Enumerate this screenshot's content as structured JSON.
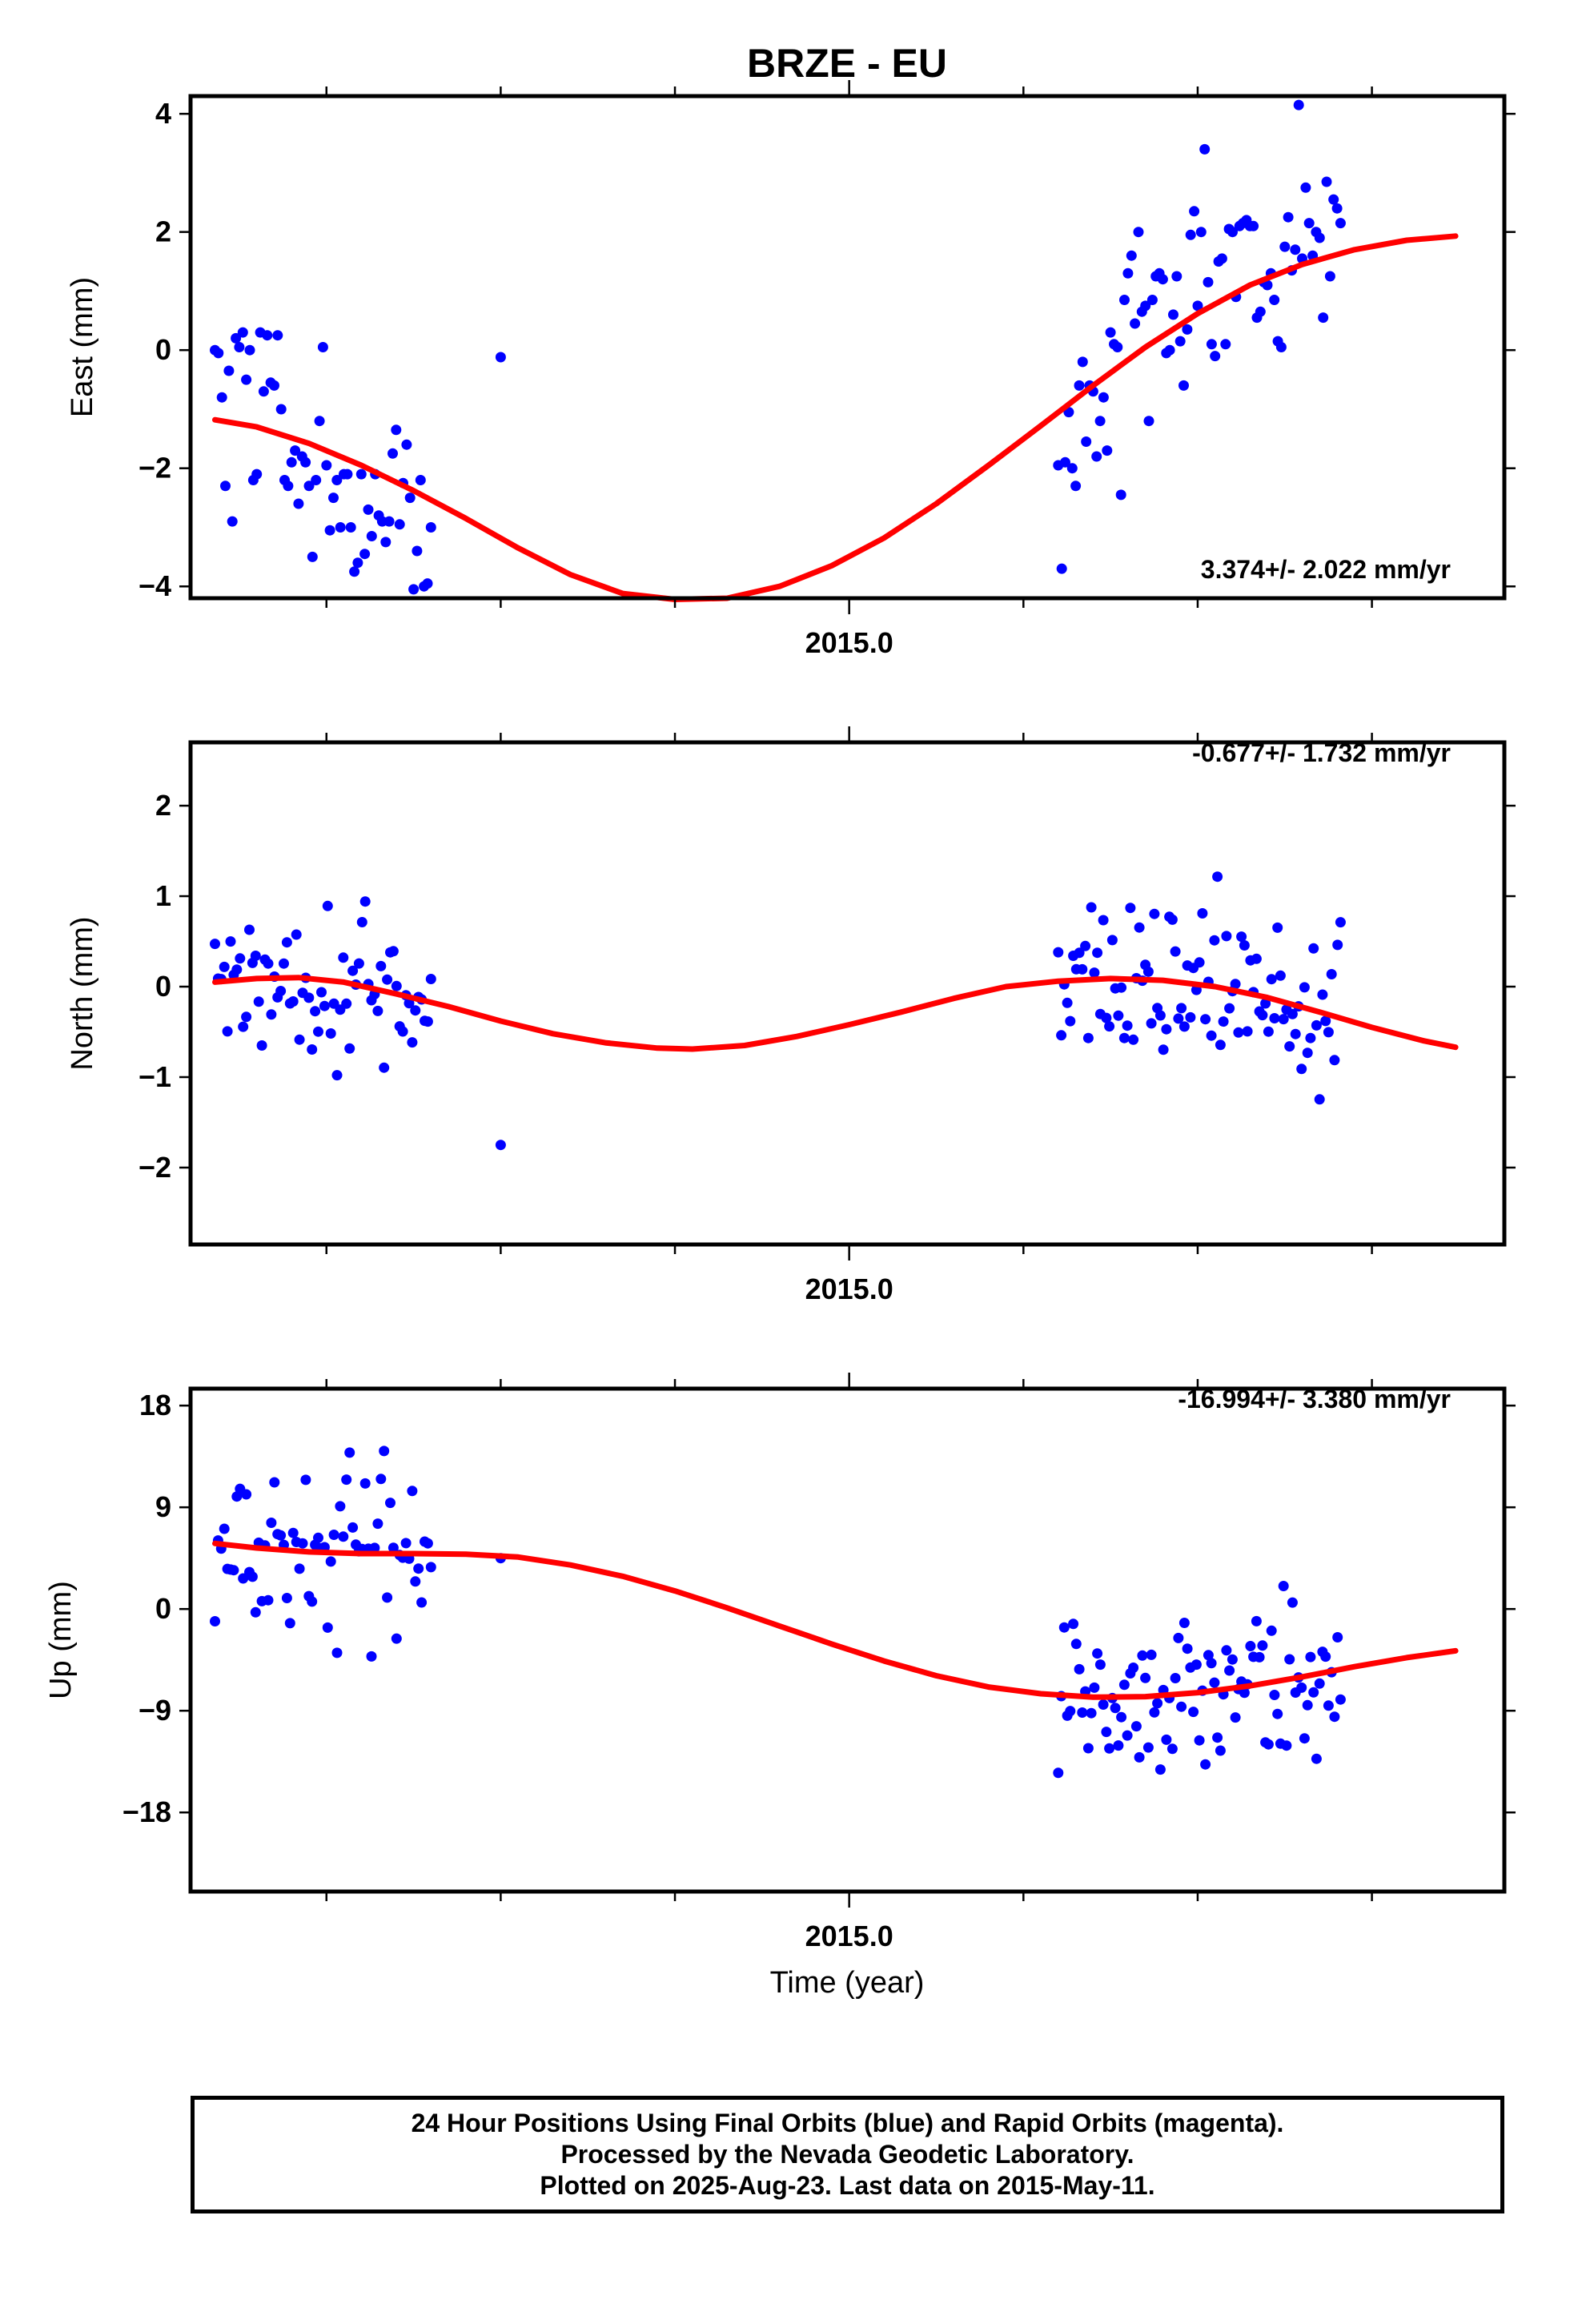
{
  "title": "BRZE - EU",
  "xlabel": "Time (year)",
  "footer": {
    "line1": "24 Hour Positions Using Final Orbits (blue) and Rapid Orbits (magenta).",
    "line2": "Processed by the Nevada Geodetic Laboratory.",
    "line3": "Plotted on 2025-Aug-23. Last data on 2015-May-11."
  },
  "colors": {
    "final_orbits": "#0000ff",
    "fit_line": "#ff0000",
    "frame": "#000000"
  },
  "chart_data": [
    {
      "type": "scatter",
      "panel": "east",
      "ylabel": "East (mm)",
      "rate_label": "3.374+/- 2.022 mm/yr",
      "xlim": [
        2013.11,
        2016.88
      ],
      "ylim": [
        -4.2,
        4.3
      ],
      "yticks": [
        {
          "v": 4,
          "label": "4"
        },
        {
          "v": 2,
          "label": "2"
        },
        {
          "v": 0,
          "label": "0"
        },
        {
          "v": -2,
          "label": "−2"
        },
        {
          "v": -4,
          "label": "−4"
        }
      ],
      "xticks": [
        {
          "v": 2015.0,
          "label": "2015.0"
        }
      ],
      "xminor": [
        2013.5,
        2014.0,
        2014.5,
        2015.5,
        2016.0,
        2016.5
      ],
      "fit": [
        [
          2013.18,
          -1.18
        ],
        [
          2013.3,
          -1.3
        ],
        [
          2013.45,
          -1.58
        ],
        [
          2013.6,
          -1.95
        ],
        [
          2013.75,
          -2.38
        ],
        [
          2013.9,
          -2.85
        ],
        [
          2014.05,
          -3.35
        ],
        [
          2014.2,
          -3.8
        ],
        [
          2014.35,
          -4.12
        ],
        [
          2014.5,
          -4.22
        ],
        [
          2014.65,
          -4.2
        ],
        [
          2014.8,
          -4.0
        ],
        [
          2014.95,
          -3.65
        ],
        [
          2015.1,
          -3.18
        ],
        [
          2015.25,
          -2.6
        ],
        [
          2015.4,
          -1.95
        ],
        [
          2015.55,
          -1.28
        ],
        [
          2015.7,
          -0.6
        ],
        [
          2015.85,
          0.05
        ],
        [
          2016.0,
          0.62
        ],
        [
          2016.15,
          1.1
        ],
        [
          2016.3,
          1.45
        ],
        [
          2016.45,
          1.7
        ],
        [
          2016.6,
          1.86
        ],
        [
          2016.74,
          1.93
        ]
      ],
      "points": [
        [
          2013.18,
          0.0
        ],
        [
          2013.19,
          -0.05
        ],
        [
          2013.2,
          -0.8
        ],
        [
          2013.21,
          -2.3
        ],
        [
          2013.22,
          -0.35
        ],
        [
          2013.23,
          -2.9
        ],
        [
          2013.24,
          0.2
        ],
        [
          2013.25,
          0.05
        ],
        [
          2013.26,
          0.3
        ],
        [
          2013.27,
          -0.5
        ],
        [
          2013.28,
          0.0
        ],
        [
          2013.29,
          -2.2
        ],
        [
          2013.3,
          -2.1
        ],
        [
          2013.31,
          0.3
        ],
        [
          2013.32,
          -0.7
        ],
        [
          2013.33,
          0.25
        ],
        [
          2013.34,
          -0.55
        ],
        [
          2013.35,
          -0.6
        ],
        [
          2013.36,
          0.25
        ],
        [
          2013.37,
          -1.0
        ],
        [
          2013.38,
          -2.2
        ],
        [
          2013.39,
          -2.3
        ],
        [
          2013.4,
          -1.9
        ],
        [
          2013.41,
          -1.7
        ],
        [
          2013.42,
          -2.6
        ],
        [
          2013.43,
          -1.8
        ],
        [
          2013.44,
          -1.9
        ],
        [
          2013.45,
          -2.3
        ],
        [
          2013.46,
          -3.5
        ],
        [
          2013.47,
          -2.2
        ],
        [
          2013.48,
          -1.2
        ],
        [
          2013.49,
          0.05
        ],
        [
          2013.5,
          -1.95
        ],
        [
          2013.51,
          -3.05
        ],
        [
          2013.52,
          -2.5
        ],
        [
          2013.53,
          -2.2
        ],
        [
          2013.54,
          -3.0
        ],
        [
          2013.55,
          -2.1
        ],
        [
          2013.56,
          -2.1
        ],
        [
          2013.57,
          -3.0
        ],
        [
          2013.58,
          -3.75
        ],
        [
          2013.59,
          -3.6
        ],
        [
          2013.6,
          -2.1
        ],
        [
          2013.61,
          -3.45
        ],
        [
          2013.62,
          -2.7
        ],
        [
          2013.63,
          -3.15
        ],
        [
          2013.64,
          -2.1
        ],
        [
          2013.65,
          -2.8
        ],
        [
          2013.66,
          -2.9
        ],
        [
          2013.67,
          -3.25
        ],
        [
          2013.68,
          -2.9
        ],
        [
          2013.69,
          -1.75
        ],
        [
          2013.7,
          -1.35
        ],
        [
          2013.71,
          -2.95
        ],
        [
          2013.72,
          -2.25
        ],
        [
          2013.73,
          -1.6
        ],
        [
          2013.74,
          -2.5
        ],
        [
          2013.75,
          -4.05
        ],
        [
          2013.76,
          -3.4
        ],
        [
          2013.77,
          -2.2
        ],
        [
          2013.78,
          -4.0
        ],
        [
          2013.79,
          -3.95
        ],
        [
          2013.8,
          -3.0
        ],
        [
          2014.0,
          -0.12
        ],
        [
          2015.6,
          -1.95
        ],
        [
          2015.61,
          -3.7
        ],
        [
          2015.62,
          -1.9
        ],
        [
          2015.63,
          -1.05
        ],
        [
          2015.64,
          -2.0
        ],
        [
          2015.65,
          -2.3
        ],
        [
          2015.66,
          -0.6
        ],
        [
          2015.67,
          -0.2
        ],
        [
          2015.68,
          -1.55
        ],
        [
          2015.69,
          -0.6
        ],
        [
          2015.7,
          -0.7
        ],
        [
          2015.71,
          -1.8
        ],
        [
          2015.72,
          -1.2
        ],
        [
          2015.73,
          -0.8
        ],
        [
          2015.74,
          -1.7
        ],
        [
          2015.75,
          0.3
        ],
        [
          2015.76,
          0.1
        ],
        [
          2015.77,
          0.05
        ],
        [
          2015.78,
          -2.45
        ],
        [
          2015.79,
          0.85
        ],
        [
          2015.8,
          1.3
        ],
        [
          2015.81,
          1.6
        ],
        [
          2015.82,
          0.45
        ],
        [
          2015.83,
          2.0
        ],
        [
          2015.84,
          0.65
        ],
        [
          2015.85,
          0.75
        ],
        [
          2015.86,
          -1.2
        ],
        [
          2015.87,
          0.85
        ],
        [
          2015.88,
          1.25
        ],
        [
          2015.89,
          1.3
        ],
        [
          2015.9,
          1.2
        ],
        [
          2015.91,
          -0.05
        ],
        [
          2015.92,
          0.0
        ],
        [
          2015.93,
          0.6
        ],
        [
          2015.94,
          1.25
        ],
        [
          2015.95,
          0.15
        ],
        [
          2015.96,
          -0.6
        ],
        [
          2015.97,
          0.35
        ],
        [
          2015.98,
          1.95
        ],
        [
          2015.99,
          2.35
        ],
        [
          2016.0,
          0.75
        ],
        [
          2016.01,
          2.0
        ],
        [
          2016.02,
          3.4
        ],
        [
          2016.03,
          1.15
        ],
        [
          2016.04,
          0.1
        ],
        [
          2016.05,
          -0.1
        ],
        [
          2016.06,
          1.5
        ],
        [
          2016.07,
          1.55
        ],
        [
          2016.08,
          0.1
        ],
        [
          2016.09,
          2.05
        ],
        [
          2016.1,
          2.0
        ],
        [
          2016.11,
          0.9
        ],
        [
          2016.12,
          2.1
        ],
        [
          2016.13,
          2.15
        ],
        [
          2016.14,
          2.2
        ],
        [
          2016.15,
          2.1
        ],
        [
          2016.16,
          2.1
        ],
        [
          2016.17,
          0.55
        ],
        [
          2016.18,
          0.65
        ],
        [
          2016.19,
          1.15
        ],
        [
          2016.2,
          1.1
        ],
        [
          2016.21,
          1.3
        ],
        [
          2016.22,
          0.85
        ],
        [
          2016.23,
          0.15
        ],
        [
          2016.24,
          0.05
        ],
        [
          2016.25,
          1.75
        ],
        [
          2016.26,
          2.25
        ],
        [
          2016.27,
          1.35
        ],
        [
          2016.28,
          1.7
        ],
        [
          2016.29,
          4.15
        ],
        [
          2016.3,
          1.55
        ],
        [
          2016.31,
          2.75
        ],
        [
          2016.32,
          2.15
        ],
        [
          2016.33,
          1.6
        ],
        [
          2016.34,
          2.0
        ],
        [
          2016.35,
          1.9
        ],
        [
          2016.36,
          0.55
        ],
        [
          2016.37,
          2.85
        ],
        [
          2016.38,
          1.25
        ],
        [
          2016.39,
          2.55
        ],
        [
          2016.4,
          2.4
        ],
        [
          2016.41,
          2.15
        ]
      ]
    },
    {
      "type": "scatter",
      "panel": "north",
      "ylabel": "North (mm)",
      "rate_label": "-0.677+/- 1.732 mm/yr",
      "xlim": [
        2013.11,
        2016.88
      ],
      "ylim": [
        -2.85,
        2.7
      ],
      "yticks": [
        {
          "v": 2,
          "label": "2"
        },
        {
          "v": 1,
          "label": "1"
        },
        {
          "v": 0,
          "label": "0"
        },
        {
          "v": -1,
          "label": "−1"
        },
        {
          "v": -2,
          "label": "−2"
        }
      ],
      "xticks": [
        {
          "v": 2015.0,
          "label": "2015.0"
        }
      ],
      "xminor": [
        2013.5,
        2014.0,
        2014.5,
        2015.5,
        2016.0,
        2016.5
      ],
      "fit": [
        [
          2013.18,
          0.05
        ],
        [
          2013.3,
          0.09
        ],
        [
          2013.42,
          0.1
        ],
        [
          2013.55,
          0.05
        ],
        [
          2013.7,
          -0.08
        ],
        [
          2013.85,
          -0.22
        ],
        [
          2014.0,
          -0.38
        ],
        [
          2014.15,
          -0.52
        ],
        [
          2014.3,
          -0.62
        ],
        [
          2014.45,
          -0.68
        ],
        [
          2014.55,
          -0.69
        ],
        [
          2014.7,
          -0.65
        ],
        [
          2014.85,
          -0.55
        ],
        [
          2015.0,
          -0.42
        ],
        [
          2015.15,
          -0.28
        ],
        [
          2015.3,
          -0.13
        ],
        [
          2015.45,
          0.0
        ],
        [
          2015.6,
          0.06
        ],
        [
          2015.75,
          0.09
        ],
        [
          2015.9,
          0.07
        ],
        [
          2016.05,
          0.0
        ],
        [
          2016.2,
          -0.12
        ],
        [
          2016.35,
          -0.28
        ],
        [
          2016.5,
          -0.45
        ],
        [
          2016.65,
          -0.6
        ],
        [
          2016.74,
          -0.67
        ]
      ]
    },
    {
      "type": "scatter",
      "panel": "up",
      "ylabel": "Up (mm)",
      "rate_label": "-16.994+/- 3.380 mm/yr",
      "xlim": [
        2013.11,
        2016.88
      ],
      "ylim": [
        -25,
        19.5
      ],
      "yticks": [
        {
          "v": 18,
          "label": "18"
        },
        {
          "v": 9,
          "label": "9"
        },
        {
          "v": 0,
          "label": "0"
        },
        {
          "v": -9,
          "label": "−9"
        },
        {
          "v": -18,
          "label": "−18"
        }
      ],
      "xticks": [
        {
          "v": 2015.0,
          "label": "2015.0"
        }
      ],
      "xminor": [
        2013.5,
        2014.0,
        2014.5,
        2015.5,
        2016.0,
        2016.5
      ],
      "fit": [
        [
          2013.18,
          5.8
        ],
        [
          2013.3,
          5.4
        ],
        [
          2013.45,
          5.05
        ],
        [
          2013.6,
          4.9
        ],
        [
          2013.75,
          4.9
        ],
        [
          2013.9,
          4.85
        ],
        [
          2014.05,
          4.6
        ],
        [
          2014.2,
          3.9
        ],
        [
          2014.35,
          2.9
        ],
        [
          2014.5,
          1.6
        ],
        [
          2014.65,
          0.1
        ],
        [
          2014.8,
          -1.5
        ],
        [
          2014.95,
          -3.1
        ],
        [
          2015.1,
          -4.6
        ],
        [
          2015.25,
          -5.9
        ],
        [
          2015.4,
          -6.9
        ],
        [
          2015.55,
          -7.5
        ],
        [
          2015.7,
          -7.8
        ],
        [
          2015.85,
          -7.75
        ],
        [
          2016.0,
          -7.4
        ],
        [
          2016.15,
          -6.8
        ],
        [
          2016.3,
          -6.0
        ],
        [
          2016.45,
          -5.1
        ],
        [
          2016.6,
          -4.3
        ],
        [
          2016.74,
          -3.7
        ]
      ]
    }
  ]
}
